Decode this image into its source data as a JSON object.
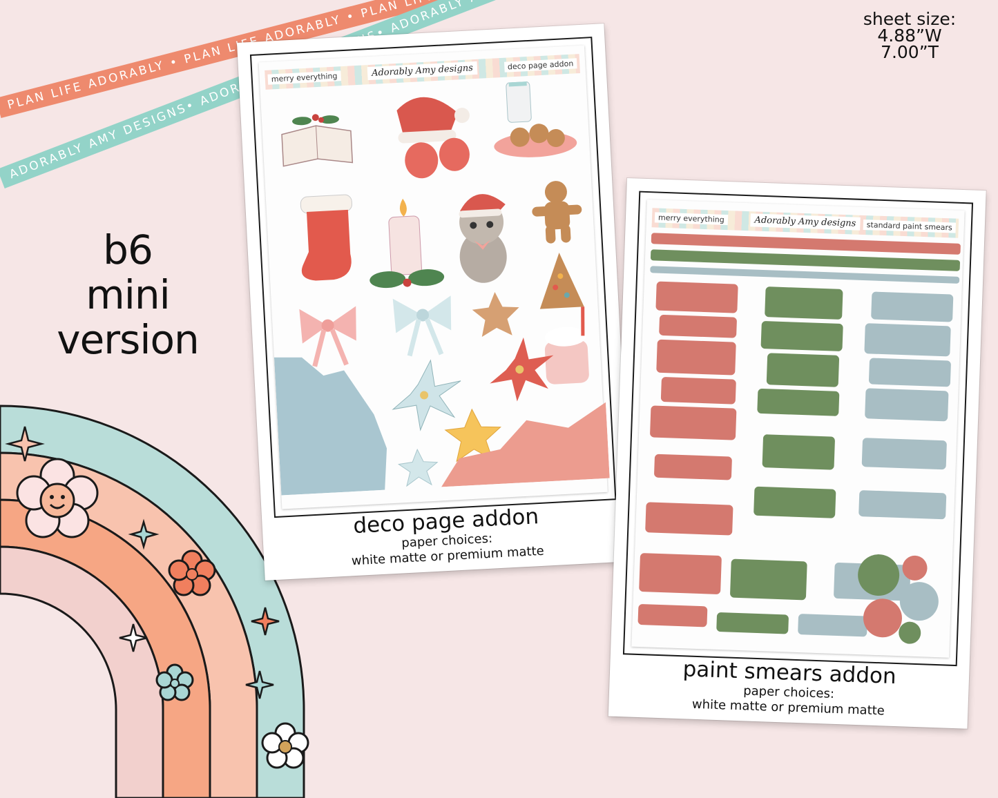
{
  "ribbons": {
    "top": "PLAN LIFE ADORABLY • PLAN LIFE ADORABLY • PLAN LIFE ADORABLY",
    "bottom": "ADORABLY AMY DESIGNS• ADORABLY AMY DESIGNS• ADORABLY AMY DESIGNS"
  },
  "sheet_size": {
    "label": "sheet size:",
    "width": "4.88”W",
    "height": "7.00”T"
  },
  "version": {
    "line1": "b6",
    "line2": "mini",
    "line3": "version"
  },
  "cards": [
    {
      "header_left": "merry everything",
      "header_logo": "Adorably Amy designs",
      "header_right": "deco page addon",
      "title": "deco page addon",
      "paper_label": "paper choices:",
      "paper_options": "white matte or premium matte"
    },
    {
      "header_left": "merry everything",
      "header_logo": "Adorably Amy designs",
      "header_right": "standard paint smears",
      "title": "paint smears addon",
      "paper_label": "paper choices:",
      "paper_options": "white matte or premium matte"
    }
  ],
  "colors": {
    "background": "#f6e6e6",
    "coral": "#ee8a6e",
    "mint": "#93d3c8",
    "rose_smear": "#d4796f",
    "green_smear": "#6f8f5e",
    "blue_smear": "#a8bec4",
    "rainbow_outer": "#b9ddd9",
    "rainbow_mid": "#f6a684",
    "rainbow_inner": "#f8c3ae",
    "rainbow_core": "#f2d0cd"
  }
}
